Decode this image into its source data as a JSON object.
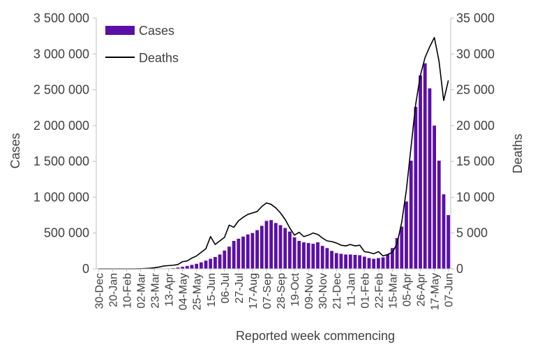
{
  "chart_data": {
    "type": "bar+line",
    "title": "",
    "xlabel": "Reported week commencing",
    "ylabel_left": "Cases",
    "ylabel_right": "Deaths",
    "ylim_left": [
      0,
      3500000
    ],
    "ylim_right": [
      0,
      35000
    ],
    "yticks_left": [
      0,
      500000,
      1000000,
      1500000,
      2000000,
      2500000,
      3000000,
      3500000
    ],
    "yticks_left_labels": [
      "0",
      "500 000",
      "1 000 000",
      "1 500 000",
      "2 000 000",
      "2 500 000",
      "3 000 000",
      "3 500 000"
    ],
    "yticks_right": [
      0,
      5000,
      10000,
      15000,
      20000,
      25000,
      30000,
      35000
    ],
    "yticks_right_labels": [
      "0",
      "5 000",
      "10 000",
      "15 000",
      "20 000",
      "25 000",
      "30 000",
      "35 000"
    ],
    "grid": false,
    "legend_position": "top-left",
    "categories": [
      "30-Dec",
      "06-Jan",
      "13-Jan",
      "20-Jan",
      "27-Jan",
      "03-Feb",
      "10-Feb",
      "17-Feb",
      "24-Feb",
      "02-Mar",
      "09-Mar",
      "16-Mar",
      "23-Mar",
      "30-Mar",
      "06-Apr",
      "13-Apr",
      "20-Apr",
      "27-Apr",
      "04-May",
      "11-May",
      "18-May",
      "25-May",
      "01-Jun",
      "08-Jun",
      "15-Jun",
      "22-Jun",
      "29-Jun",
      "06-Jul",
      "13-Jul",
      "20-Jul",
      "27-Jul",
      "03-Aug",
      "10-Aug",
      "17-Aug",
      "24-Aug",
      "31-Aug",
      "07-Sep",
      "14-Sep",
      "21-Sep",
      "28-Sep",
      "05-Oct",
      "12-Oct",
      "19-Oct",
      "26-Oct",
      "02-Nov",
      "09-Nov",
      "16-Nov",
      "23-Nov",
      "30-Nov",
      "07-Dec",
      "14-Dec",
      "21-Dec",
      "28-Dec",
      "04-Jan",
      "11-Jan",
      "18-Jan",
      "25-Jan",
      "01-Feb",
      "08-Feb",
      "15-Feb",
      "22-Feb",
      "01-Mar",
      "08-Mar",
      "15-Mar",
      "22-Mar",
      "29-Mar",
      "05-Apr",
      "12-Apr",
      "19-Apr",
      "26-Apr",
      "03-May",
      "10-May",
      "17-May",
      "24-May",
      "31-May",
      "07-Jun"
    ],
    "visible_tick_labels": [
      "30-Dec",
      "20-Jan",
      "10-Feb",
      "02-Mar",
      "23-Mar",
      "13-Apr",
      "04-May",
      "25-May",
      "15-Jun",
      "06-Jul",
      "27-Jul",
      "17-Aug",
      "07-Sep",
      "28-Sep",
      "19-Oct",
      "09-Nov",
      "30-Nov",
      "21-Dec",
      "11-Jan",
      "01-Feb",
      "22-Feb",
      "15-Mar",
      "05-Apr",
      "26-Apr",
      "17-May",
      "07-Jun"
    ],
    "series": [
      {
        "name": "Cases",
        "kind": "bar",
        "axis": "left",
        "color": "#5B0FA8",
        "values": [
          0,
          0,
          0,
          0,
          0,
          0,
          0,
          0,
          0,
          0,
          0,
          0,
          0,
          0,
          0,
          5000,
          10000,
          18000,
          28000,
          40000,
          55000,
          70000,
          90000,
          115000,
          140000,
          165000,
          200000,
          255000,
          310000,
          390000,
          420000,
          450000,
          480000,
          500000,
          540000,
          600000,
          670000,
          680000,
          640000,
          610000,
          570000,
          520000,
          440000,
          390000,
          370000,
          360000,
          350000,
          370000,
          320000,
          290000,
          250000,
          220000,
          210000,
          200000,
          200000,
          195000,
          190000,
          170000,
          150000,
          140000,
          150000,
          160000,
          200000,
          290000,
          430000,
          590000,
          940000,
          1510000,
          2260000,
          2700000,
          2870000,
          2520000,
          2000000,
          1510000,
          1040000,
          750000
        ]
      },
      {
        "name": "Deaths",
        "kind": "line",
        "axis": "right",
        "color": "#000000",
        "values": [
          0,
          0,
          0,
          0,
          0,
          0,
          0,
          0,
          0,
          20,
          50,
          80,
          150,
          250,
          400,
          450,
          500,
          600,
          1000,
          1100,
          1500,
          1800,
          2300,
          2800,
          4500,
          3400,
          3900,
          4400,
          6100,
          5800,
          6700,
          7200,
          7600,
          7800,
          8000,
          8700,
          9200,
          9000,
          8500,
          7800,
          6900,
          5700,
          4700,
          5100,
          4500,
          4700,
          5000,
          4800,
          4300,
          3900,
          3800,
          3600,
          3300,
          3200,
          3400,
          3200,
          3300,
          2400,
          2300,
          2100,
          2400,
          1800,
          2000,
          2300,
          3500,
          6500,
          11000,
          17000,
          23000,
          27000,
          29500,
          31000,
          32300,
          29000,
          23500,
          26300
        ]
      }
    ]
  }
}
